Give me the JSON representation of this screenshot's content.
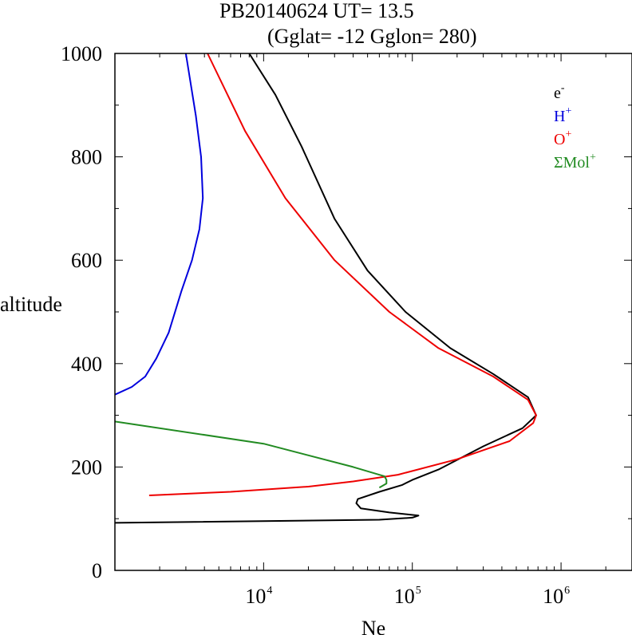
{
  "chart_data": {
    "type": "line",
    "title_line1": "PB20140624   UT=  13.5",
    "title_line2": "(Gglat= -12   Gglon=  280)",
    "xlabel": "Ne",
    "ylabel": "altitude",
    "x_scale": "log",
    "xlim": [
      1000,
      3000000
    ],
    "ylim": [
      0,
      1000
    ],
    "x_ticks": [
      {
        "value": 10000,
        "base": "10",
        "exp": "4"
      },
      {
        "value": 100000,
        "base": "10",
        "exp": "5"
      },
      {
        "value": 1000000,
        "base": "10",
        "exp": "6"
      }
    ],
    "y_ticks": [
      0,
      200,
      400,
      600,
      800,
      1000
    ],
    "legend_position": "top-right",
    "series": [
      {
        "name": "e",
        "name_sup": "-",
        "color": "#000000",
        "points": [
          [
            1000,
            92
          ],
          [
            60000,
            98
          ],
          [
            100000,
            102
          ],
          [
            110000,
            106
          ],
          [
            70000,
            112
          ],
          [
            45000,
            120
          ],
          [
            42000,
            130
          ],
          [
            43000,
            138
          ],
          [
            60000,
            152
          ],
          [
            85000,
            165
          ],
          [
            100000,
            175
          ],
          [
            150000,
            195
          ],
          [
            300000,
            240
          ],
          [
            550000,
            275
          ],
          [
            680000,
            300
          ],
          [
            600000,
            335
          ],
          [
            350000,
            380
          ],
          [
            180000,
            430
          ],
          [
            90000,
            500
          ],
          [
            50000,
            580
          ],
          [
            30000,
            680
          ],
          [
            18000,
            820
          ],
          [
            12000,
            920
          ],
          [
            8000,
            1000
          ]
        ]
      },
      {
        "name": "H",
        "name_sup": "+",
        "color": "#0000dd",
        "points": [
          [
            1000,
            340
          ],
          [
            1300,
            355
          ],
          [
            1600,
            375
          ],
          [
            1900,
            410
          ],
          [
            2300,
            460
          ],
          [
            2800,
            540
          ],
          [
            3300,
            600
          ],
          [
            3700,
            660
          ],
          [
            3900,
            720
          ],
          [
            3800,
            800
          ],
          [
            3500,
            880
          ],
          [
            3200,
            950
          ],
          [
            3000,
            1000
          ]
        ]
      },
      {
        "name": "O",
        "name_sup": "+",
        "color": "#ee0000",
        "points": [
          [
            1700,
            145
          ],
          [
            6000,
            152
          ],
          [
            20000,
            162
          ],
          [
            40000,
            172
          ],
          [
            80000,
            185
          ],
          [
            200000,
            215
          ],
          [
            450000,
            250
          ],
          [
            650000,
            285
          ],
          [
            680000,
            300
          ],
          [
            600000,
            330
          ],
          [
            350000,
            375
          ],
          [
            150000,
            430
          ],
          [
            70000,
            500
          ],
          [
            30000,
            600
          ],
          [
            14000,
            720
          ],
          [
            7500,
            850
          ],
          [
            4200,
            1000
          ]
        ]
      },
      {
        "name": "ΣMol",
        "name_sup": "+",
        "color": "#228b22",
        "points": [
          [
            1000,
            288
          ],
          [
            10000,
            245
          ],
          [
            40000,
            200
          ],
          [
            65000,
            182
          ],
          [
            67000,
            175
          ],
          [
            67000,
            168
          ],
          [
            60000,
            160
          ]
        ]
      }
    ]
  }
}
